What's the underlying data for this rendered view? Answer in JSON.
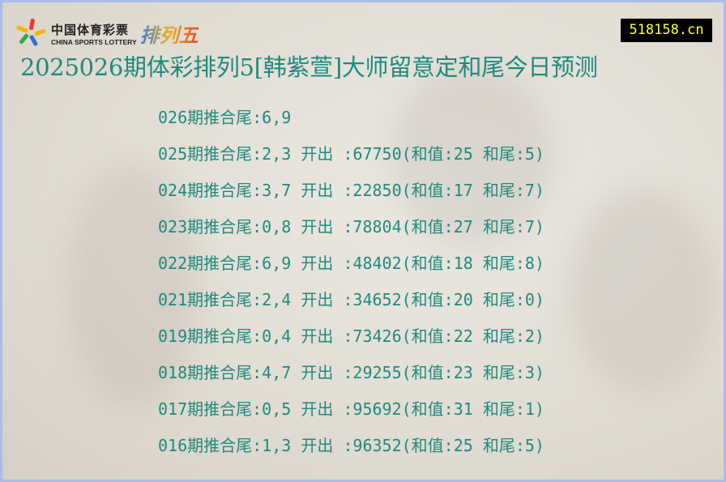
{
  "logo": {
    "cn": "中国体育彩票",
    "en": "CHINA SPORTS LOTTERY",
    "game": "排列五",
    "colors": [
      "#e23b2e",
      "#f4b400",
      "#2f6fd6",
      "#2ea84f"
    ]
  },
  "site_badge": "518158.cn",
  "title": "2025026期体彩排列5[韩紫萱]大师留意定和尾今日预测",
  "rows": [
    "026期推合尾:6,9",
    "025期推合尾:2,3 开出 :67750(和值:25 和尾:5)",
    "024期推合尾:3,7 开出 :22850(和值:17 和尾:7)",
    "023期推合尾:0,8 开出 :78804(和值:27 和尾:7)",
    "022期推合尾:6,9 开出 :48402(和值:18 和尾:8)",
    "021期推合尾:2,4 开出 :34652(和值:20 和尾:0)",
    "019期推合尾:0,4 开出 :73426(和值:22 和尾:2)",
    "018期推合尾:4,7 开出 :29255(和值:23 和尾:3)",
    "017期推合尾:0,5 开出 :95692(和值:31 和尾:1)",
    "016期推合尾:1,3 开出 :96352(和值:25 和尾:5)"
  ]
}
